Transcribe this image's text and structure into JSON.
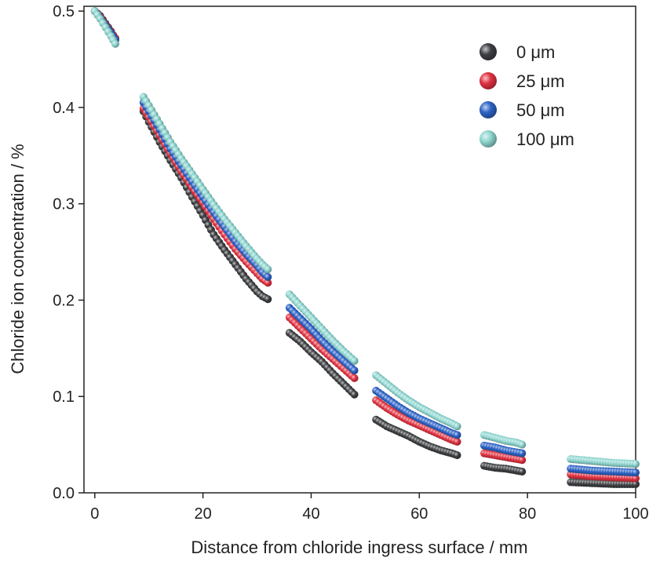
{
  "chart_data": {
    "type": "scatter",
    "title": "",
    "xlabel": "Distance from chloride ingress surface / mm",
    "ylabel": "Chloride ion concentration / %",
    "xlim": [
      -2,
      100
    ],
    "ylim": [
      0,
      0.505
    ],
    "xticks": [
      "0",
      "20",
      "40",
      "60",
      "80",
      "100"
    ],
    "yticks": [
      "0.0",
      "0.1",
      "0.2",
      "0.3",
      "0.4",
      "0.5"
    ],
    "grid": false,
    "legend_position": "top-right",
    "series": [
      {
        "name": "0 μm",
        "color": "#3d3f42",
        "segments": [
          {
            "x": [
              0,
              1,
              2,
              3,
              3.8
            ],
            "y": [
              0.5,
              0.495,
              0.487,
              0.479,
              0.471
            ]
          },
          {
            "x": [
              9,
              10,
              12,
              14,
              16,
              18,
              20,
              22,
              24,
              26,
              28,
              30,
              31,
              32
            ],
            "y": [
              0.396,
              0.385,
              0.364,
              0.345,
              0.327,
              0.307,
              0.288,
              0.268,
              0.252,
              0.237,
              0.222,
              0.209,
              0.204,
              0.201
            ]
          },
          {
            "x": [
              36,
              38,
              40,
              42,
              44,
              46,
              48
            ],
            "y": [
              0.166,
              0.157,
              0.146,
              0.136,
              0.124,
              0.113,
              0.102
            ]
          },
          {
            "x": [
              52,
              54,
              56,
              58,
              60,
              62,
              64,
              66,
              67
            ],
            "y": [
              0.076,
              0.069,
              0.064,
              0.059,
              0.053,
              0.048,
              0.044,
              0.041,
              0.039
            ]
          },
          {
            "x": [
              72,
              74,
              76,
              78,
              79
            ],
            "y": [
              0.028,
              0.026,
              0.025,
              0.023,
              0.022
            ]
          },
          {
            "x": [
              88,
              92,
              96,
              100
            ],
            "y": [
              0.011,
              0.01,
              0.009,
              0.009
            ]
          }
        ]
      },
      {
        "name": "25 μm",
        "color": "#e03241",
        "segments": [
          {
            "x": [
              0,
              1,
              2,
              3,
              3.8
            ],
            "y": [
              0.5,
              0.494,
              0.486,
              0.478,
              0.472
            ]
          },
          {
            "x": [
              9,
              10,
              12,
              14,
              16,
              18,
              20,
              22,
              24,
              26,
              28,
              30,
              31,
              32
            ],
            "y": [
              0.399,
              0.39,
              0.371,
              0.352,
              0.334,
              0.317,
              0.301,
              0.284,
              0.268,
              0.253,
              0.24,
              0.228,
              0.222,
              0.218
            ]
          },
          {
            "x": [
              36,
              38,
              40,
              42,
              44,
              46,
              48
            ],
            "y": [
              0.182,
              0.171,
              0.16,
              0.149,
              0.139,
              0.129,
              0.119
            ]
          },
          {
            "x": [
              52,
              54,
              56,
              58,
              60,
              62,
              64,
              66,
              67
            ],
            "y": [
              0.096,
              0.088,
              0.081,
              0.075,
              0.07,
              0.065,
              0.06,
              0.055,
              0.053
            ]
          },
          {
            "x": [
              72,
              74,
              76,
              78,
              79
            ],
            "y": [
              0.041,
              0.039,
              0.037,
              0.035,
              0.034
            ]
          },
          {
            "x": [
              88,
              92,
              96,
              100
            ],
            "y": [
              0.019,
              0.017,
              0.016,
              0.015
            ]
          }
        ]
      },
      {
        "name": "50 μm",
        "color": "#2d63c6",
        "segments": [
          {
            "x": [
              0,
              1,
              2,
              3,
              3.8
            ],
            "y": [
              0.5,
              0.493,
              0.485,
              0.477,
              0.47
            ]
          },
          {
            "x": [
              9,
              10,
              12,
              14,
              16,
              18,
              20,
              22,
              24,
              26,
              28,
              30,
              31,
              32
            ],
            "y": [
              0.405,
              0.396,
              0.377,
              0.357,
              0.34,
              0.323,
              0.307,
              0.291,
              0.276,
              0.261,
              0.248,
              0.236,
              0.229,
              0.224
            ]
          },
          {
            "x": [
              36,
              38,
              40,
              42,
              44,
              46,
              48
            ],
            "y": [
              0.192,
              0.181,
              0.17,
              0.158,
              0.147,
              0.137,
              0.127
            ]
          },
          {
            "x": [
              52,
              54,
              56,
              58,
              60,
              62,
              64,
              66,
              67
            ],
            "y": [
              0.106,
              0.098,
              0.09,
              0.083,
              0.077,
              0.072,
              0.067,
              0.062,
              0.06
            ]
          },
          {
            "x": [
              72,
              74,
              76,
              78,
              79
            ],
            "y": [
              0.049,
              0.047,
              0.044,
              0.042,
              0.041
            ]
          },
          {
            "x": [
              88,
              92,
              96,
              100
            ],
            "y": [
              0.025,
              0.023,
              0.022,
              0.021
            ]
          }
        ]
      },
      {
        "name": "100 μm",
        "color": "#8fd6d0",
        "segments": [
          {
            "x": [
              0,
              1,
              2,
              3,
              3.8
            ],
            "y": [
              0.5,
              0.492,
              0.483,
              0.474,
              0.466
            ]
          },
          {
            "x": [
              9,
              10,
              12,
              14,
              16,
              18,
              20,
              22,
              24,
              26,
              28,
              30,
              31,
              32
            ],
            "y": [
              0.411,
              0.402,
              0.383,
              0.364,
              0.347,
              0.331,
              0.315,
              0.299,
              0.284,
              0.27,
              0.256,
              0.243,
              0.237,
              0.232
            ]
          },
          {
            "x": [
              36,
              38,
              40,
              42,
              44,
              46,
              48
            ],
            "y": [
              0.206,
              0.194,
              0.182,
              0.17,
              0.158,
              0.147,
              0.137
            ]
          },
          {
            "x": [
              52,
              54,
              56,
              58,
              60,
              62,
              64,
              66,
              67
            ],
            "y": [
              0.122,
              0.113,
              0.104,
              0.096,
              0.089,
              0.083,
              0.077,
              0.072,
              0.069
            ]
          },
          {
            "x": [
              72,
              74,
              76,
              78,
              79
            ],
            "y": [
              0.06,
              0.057,
              0.054,
              0.052,
              0.05
            ]
          },
          {
            "x": [
              88,
              92,
              96,
              100
            ],
            "y": [
              0.035,
              0.033,
              0.031,
              0.03
            ]
          }
        ]
      }
    ]
  }
}
